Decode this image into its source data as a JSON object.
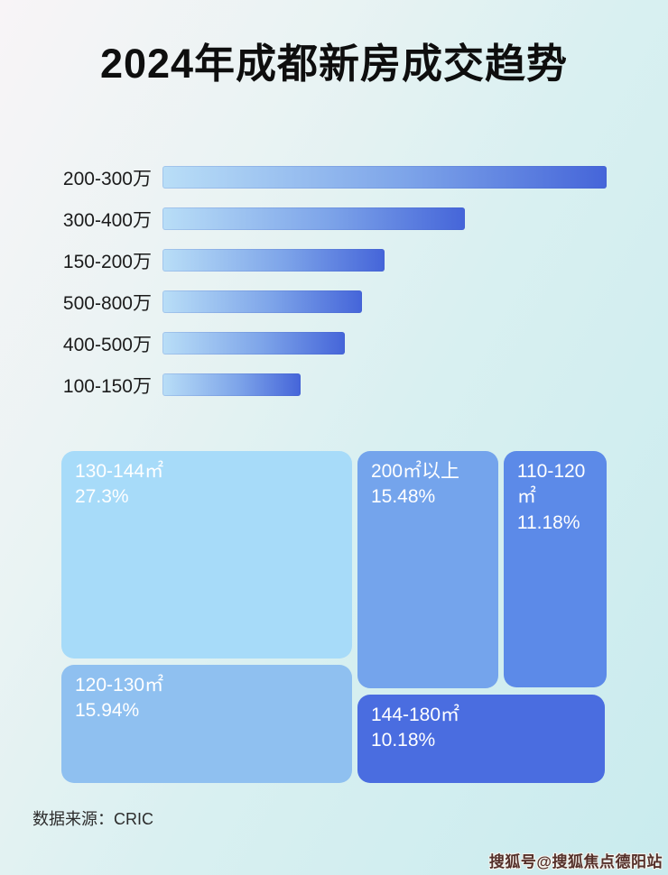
{
  "page": {
    "title": "2024年成都新房成交趋势",
    "footer": "数据来源：CRIC",
    "watermark": "搜狐号@搜狐焦点德阳站"
  },
  "colors": {
    "background_gradient": [
      "#f8f4f7",
      "#c9ebee"
    ],
    "bar_gradient_start": "#b9def7",
    "bar_gradient_end": "#4565d9",
    "title_text": "#0e0e0e",
    "tile_text": "#ffffff"
  },
  "chart_data": [
    {
      "type": "bar",
      "orientation": "horizontal",
      "title": "",
      "categories": [
        "200-300万",
        "300-400万",
        "150-200万",
        "500-800万",
        "400-500万",
        "100-150万"
      ],
      "values": [
        100,
        68,
        50,
        45,
        41,
        31
      ],
      "value_unit": "relative length, % of longest bar (bars carry no printed numbers; estimated from pixels)",
      "xlabel": "",
      "ylabel": "",
      "grid": false,
      "legend": "none"
    },
    {
      "type": "treemap",
      "title": "",
      "tiles": [
        {
          "label": "130-144㎡",
          "value_pct": 27.3,
          "display": "27.3%",
          "color": "#a7dbf9",
          "rect": {
            "left_pct": 0,
            "top_pct": 0,
            "width_pct": 53.3,
            "height_pct": 62.5
          }
        },
        {
          "label": "200㎡以上",
          "value_pct": 15.48,
          "display": "15.48%",
          "color": "#74a4ec",
          "rect": {
            "left_pct": 54.3,
            "top_pct": 0,
            "width_pct": 25.8,
            "height_pct": 71.5
          }
        },
        {
          "label": "110-120㎡",
          "value_pct": 11.18,
          "display": "11.18%",
          "color": "#5c8ae8",
          "rect": {
            "left_pct": 81.1,
            "top_pct": 0,
            "width_pct": 18.9,
            "height_pct": 71.2
          }
        },
        {
          "label": "120-130㎡",
          "value_pct": 15.94,
          "display": "15.94%",
          "color": "#8fc0f0",
          "rect": {
            "left_pct": 0,
            "top_pct": 64.4,
            "width_pct": 53.3,
            "height_pct": 35.6
          }
        },
        {
          "label": "144-180㎡",
          "value_pct": 10.18,
          "display": "10.18%",
          "color": "#4a6de0",
          "rect": {
            "left_pct": 54.3,
            "top_pct": 73.4,
            "width_pct": 45.4,
            "height_pct": 26.6
          }
        }
      ]
    }
  ]
}
